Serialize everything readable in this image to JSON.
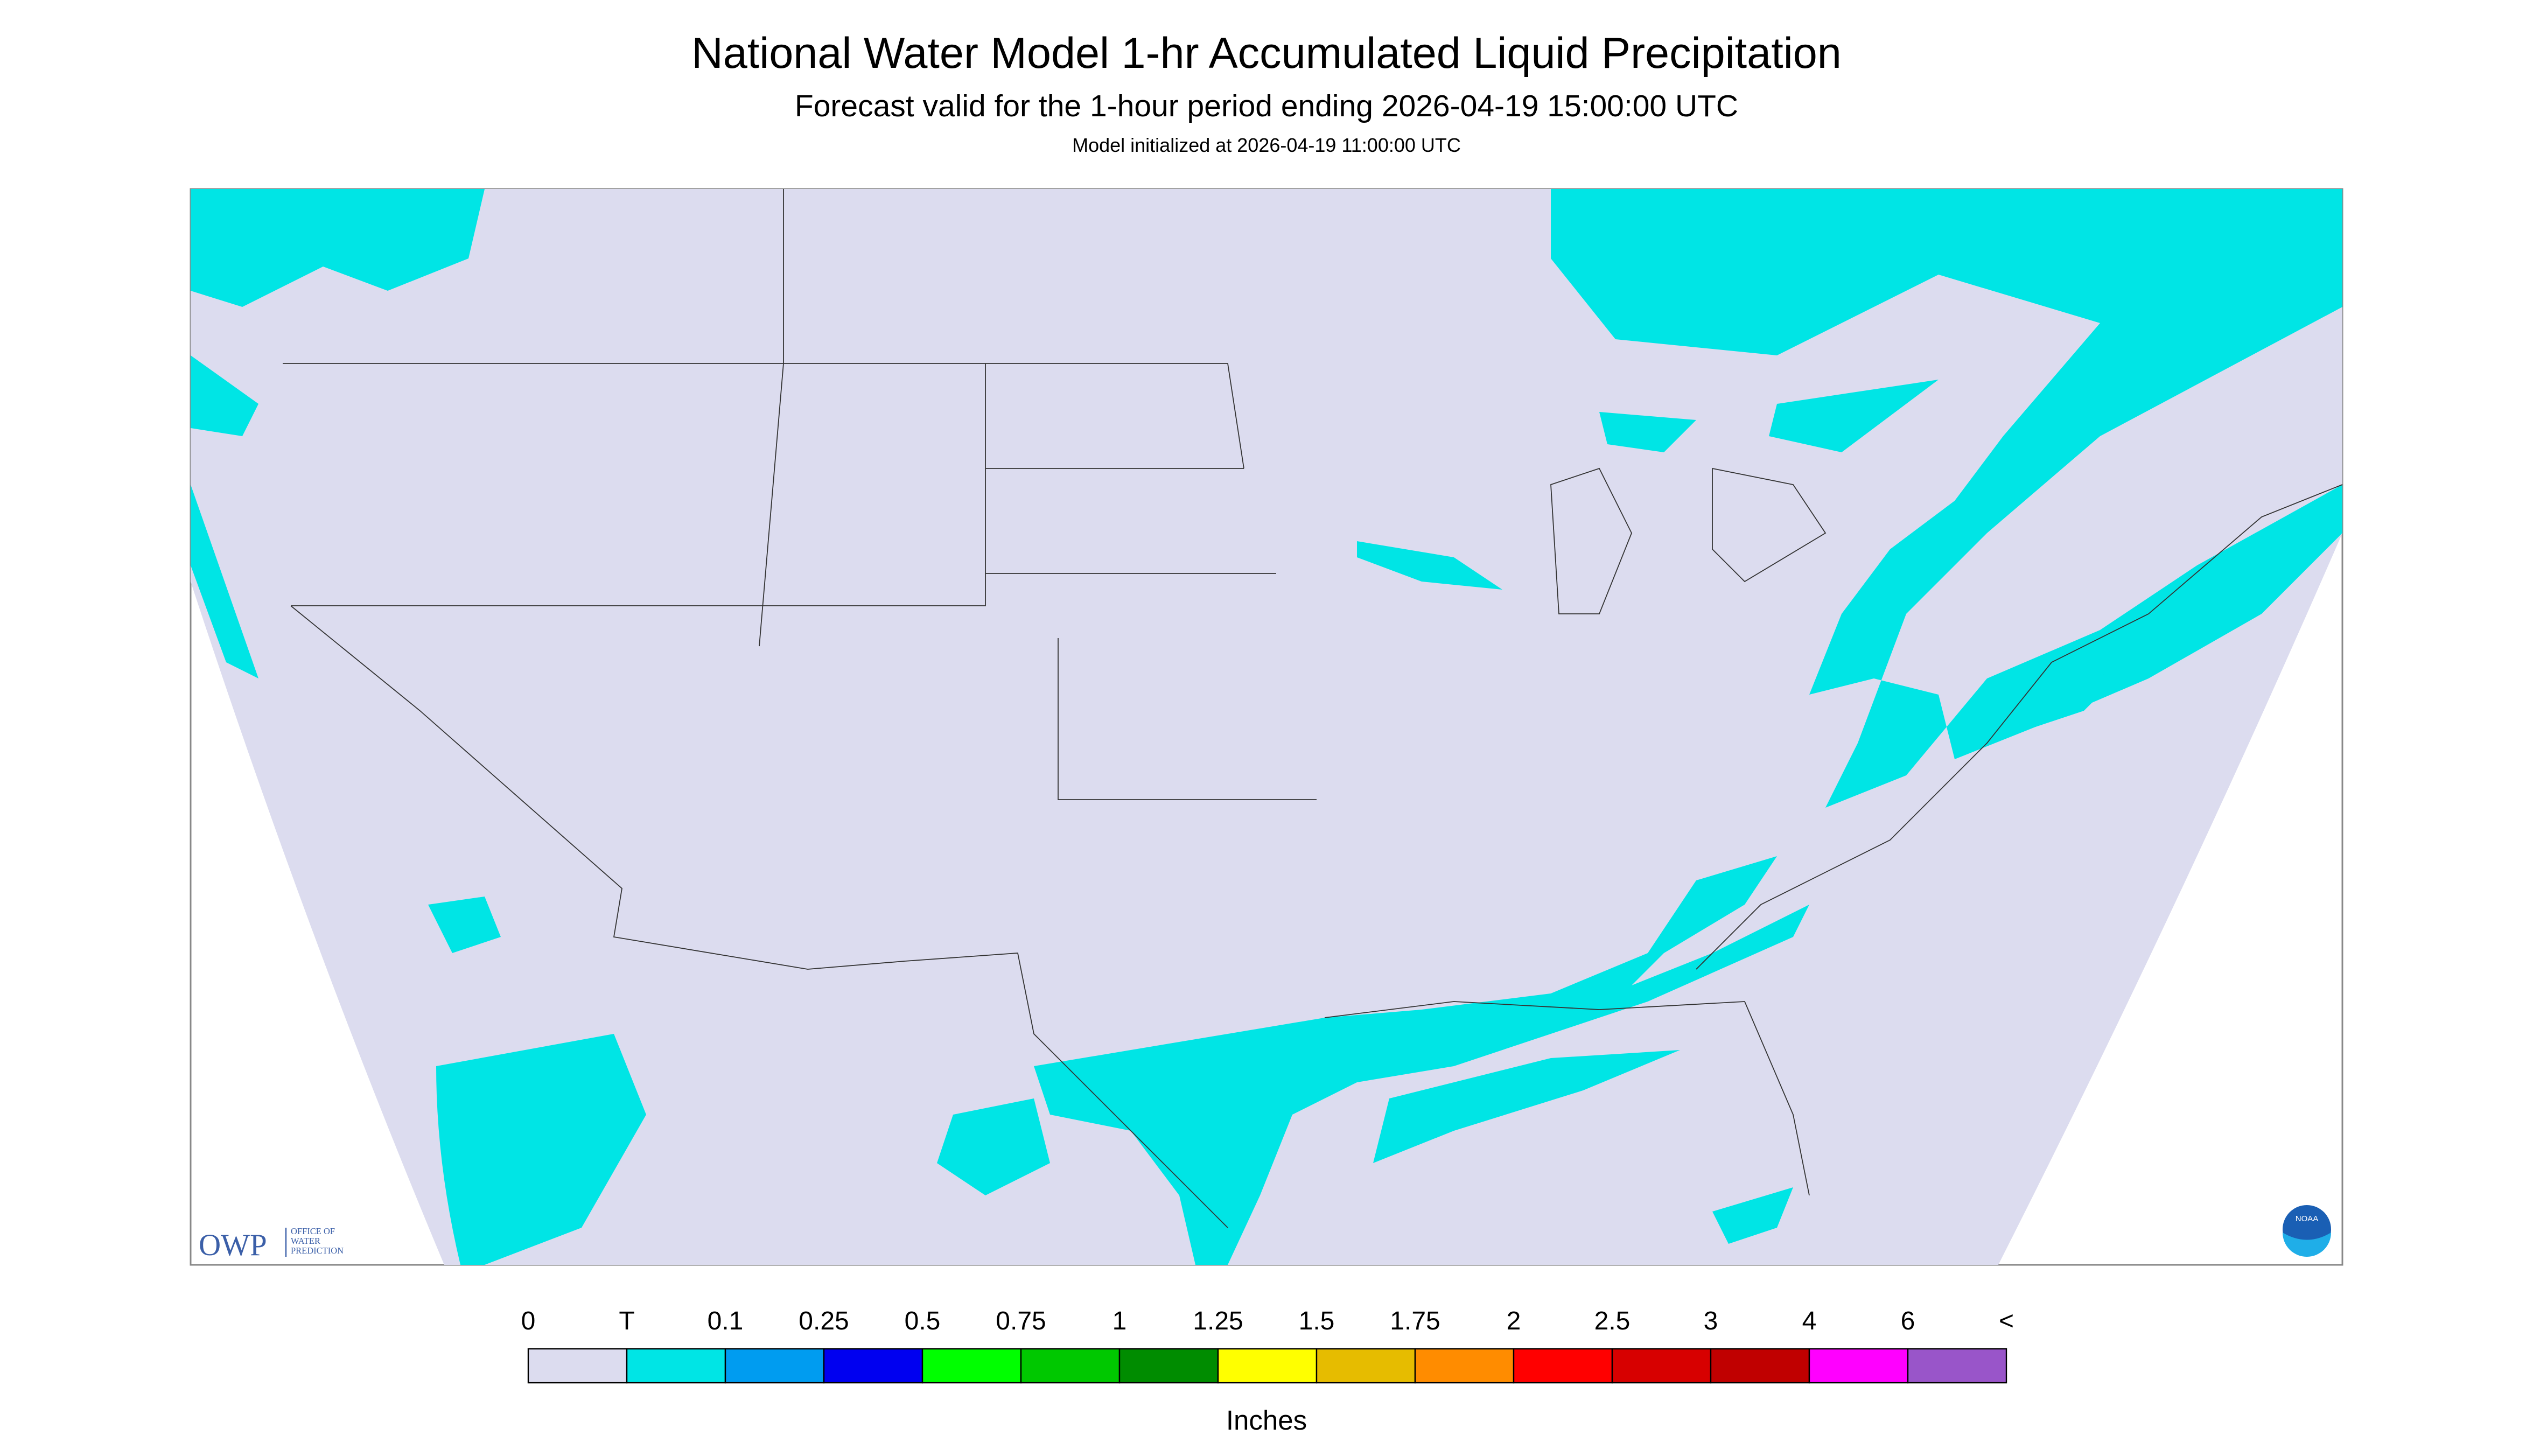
{
  "header": {
    "title": "National Water Model 1-hr Accumulated Liquid Precipitation",
    "subtitle": "Forecast valid for the 1-hour period ending 2026-04-19 15:00:00 UTC",
    "init": "Model initialized at 2026-04-19 11:00:00 UTC"
  },
  "logos": {
    "owp": "OWP",
    "owp_text": [
      "OFFICE OF",
      "WATER",
      "PREDICTION"
    ],
    "noaa": "NOAA"
  },
  "colorbar": {
    "labels": [
      "0",
      "T",
      "0.1",
      "0.25",
      "0.5",
      "0.75",
      "1",
      "1.25",
      "1.5",
      "1.75",
      "2",
      "2.5",
      "3",
      "4",
      "6",
      "<"
    ],
    "colors": [
      "#dcdcef",
      "#00e5e5",
      "#009cf0",
      "#0000f0",
      "#00ff00",
      "#00c800",
      "#008c00",
      "#ffff00",
      "#e6bc00",
      "#ff8c00",
      "#ff0000",
      "#d70000",
      "#c00000",
      "#ff00ff",
      "#9955c9"
    ],
    "unit": "Inches"
  }
}
